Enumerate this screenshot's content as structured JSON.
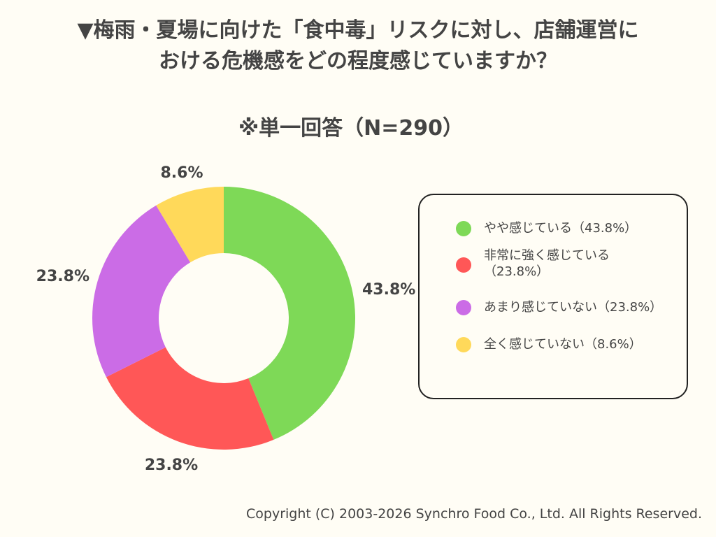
{
  "title": {
    "line1": "▼梅雨・夏場に向けた「食中毒」リスクに対し、店舗運営に",
    "line2": "おける危機感をどの程度感じていますか？"
  },
  "subtitle": "※単一回答（N=290）",
  "chart_data": {
    "type": "pie",
    "donut": true,
    "slices": [
      {
        "label": "やや感じている（43.8%）",
        "value": 43.8,
        "display": "43.8%",
        "color": "#7ed957"
      },
      {
        "label": "非常に強く感じている（23.8%）",
        "value": 23.8,
        "display": "23.8%",
        "color": "#ff5757"
      },
      {
        "label": "あまり感じていない（23.8%）",
        "value": 23.8,
        "display": "23.8%",
        "color": "#cb6ce6"
      },
      {
        "label": "全く感じていない（8.6%）",
        "value": 8.6,
        "display": "8.6%",
        "color": "#ffd95a"
      }
    ],
    "legend_position": "right"
  },
  "copyright": "Copyright (C) 2003-2026  Synchro Food Co., Ltd. All Rights Reserved."
}
